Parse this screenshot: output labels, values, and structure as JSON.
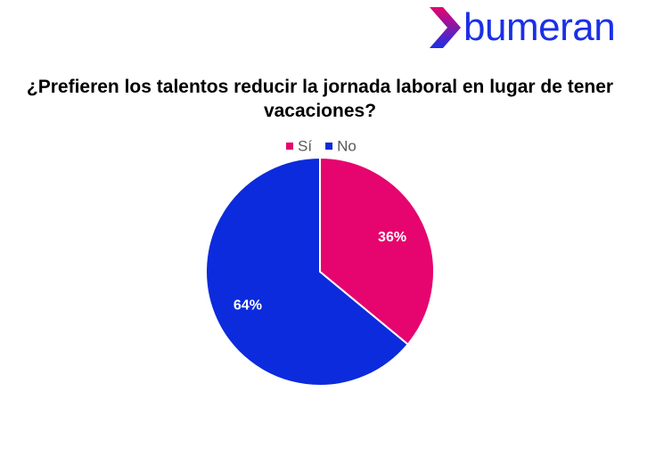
{
  "logo": "bumeran",
  "chart_data": {
    "type": "pie",
    "title": "¿Prefieren los talentos reducir la jornada laboral en lugar de tener vacaciones?",
    "categories": [
      "Sí",
      "No"
    ],
    "values": [
      36,
      64
    ],
    "value_labels": [
      "36%",
      "64%"
    ],
    "colors": [
      "#e6046e",
      "#0b2bdc"
    ],
    "legend": "top"
  }
}
